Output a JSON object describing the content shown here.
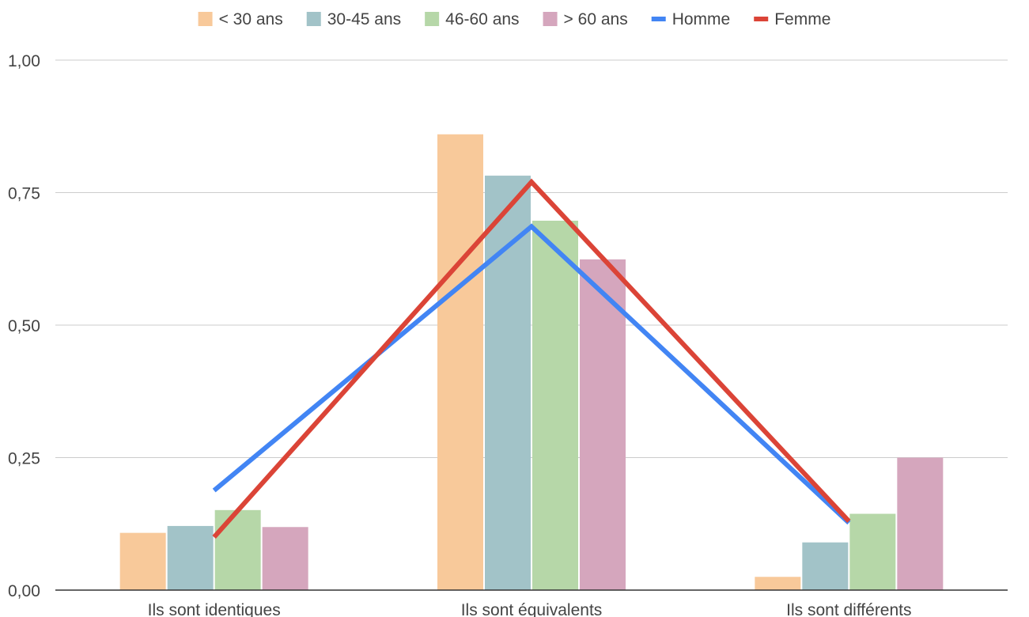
{
  "chart_data": {
    "type": "bar",
    "title": "",
    "xlabel": "",
    "ylabel": "",
    "categories": [
      "Ils sont identiques",
      "Ils sont équivalents",
      "Ils sont différents"
    ],
    "ylim": [
      0,
      1
    ],
    "yticks": [
      0,
      0.25,
      0.5,
      0.75,
      1
    ],
    "ytick_labels": [
      "0,00",
      "0,25",
      "0,50",
      "0,75",
      "1,00"
    ],
    "grid": true,
    "legend_position": "top",
    "series": [
      {
        "name": "< 30 ans",
        "kind": "bar",
        "color": "#F8C99A",
        "values": [
          0.108,
          0.86,
          0.025
        ]
      },
      {
        "name": "30-45 ans",
        "kind": "bar",
        "color": "#A2C3C8",
        "values": [
          0.121,
          0.782,
          0.09
        ]
      },
      {
        "name": "46-60 ans",
        "kind": "bar",
        "color": "#B6D7A8",
        "values": [
          0.151,
          0.697,
          0.144
        ]
      },
      {
        "name": "> 60 ans",
        "kind": "bar",
        "color": "#D5A6BD",
        "values": [
          0.119,
          0.624,
          0.25
        ]
      },
      {
        "name": "Homme",
        "kind": "line",
        "color": "#4285F4",
        "values": [
          0.188,
          0.686,
          0.127
        ]
      },
      {
        "name": "Femme",
        "kind": "line",
        "color": "#DB4437",
        "values": [
          0.1,
          0.77,
          0.13
        ]
      }
    ]
  }
}
